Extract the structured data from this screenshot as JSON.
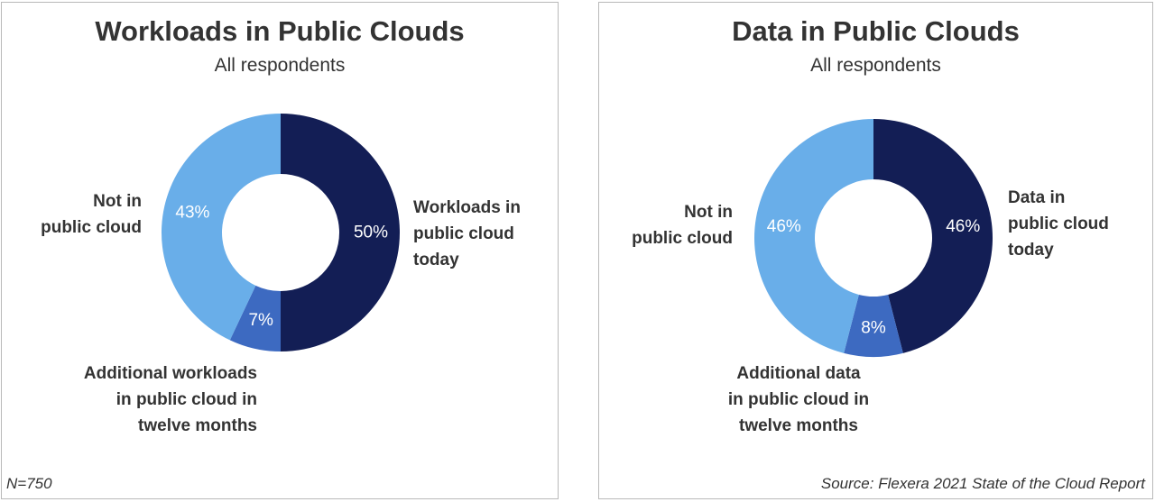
{
  "chart_data": [
    {
      "type": "pie",
      "title": "Workloads in Public Clouds",
      "subtitle": "All respondents",
      "categories": [
        "Workloads in public cloud today",
        "Additional workloads in public cloud in twelve months",
        "Not in public cloud"
      ],
      "values": [
        50,
        7,
        43
      ],
      "value_labels": [
        "50%",
        "7%",
        "43%"
      ],
      "category_labels": [
        [
          "Workloads in",
          "public cloud",
          "today"
        ],
        [
          "Additional workloads",
          "in public cloud in",
          "twelve months"
        ],
        [
          "Not in",
          "public cloud"
        ]
      ],
      "colors": [
        "#131e55",
        "#3d6ac1",
        "#69aee9"
      ],
      "donut": true,
      "footnote": "N=750"
    },
    {
      "type": "pie",
      "title": "Data in Public Clouds",
      "subtitle": "All respondents",
      "categories": [
        "Data in public cloud today",
        "Additional data in public cloud in twelve months",
        "Not in public cloud"
      ],
      "values": [
        46,
        8,
        46
      ],
      "value_labels": [
        "46%",
        "8%",
        "46%"
      ],
      "category_labels": [
        [
          "Data in",
          "public cloud",
          "today"
        ],
        [
          "Additional data",
          "in public cloud in",
          "twelve months"
        ],
        [
          "Not in",
          "public cloud"
        ]
      ],
      "colors": [
        "#131e55",
        "#3d6ac1",
        "#69aee9"
      ],
      "donut": true,
      "footnote": "Source: Flexera 2021 State of the Cloud Report"
    }
  ]
}
